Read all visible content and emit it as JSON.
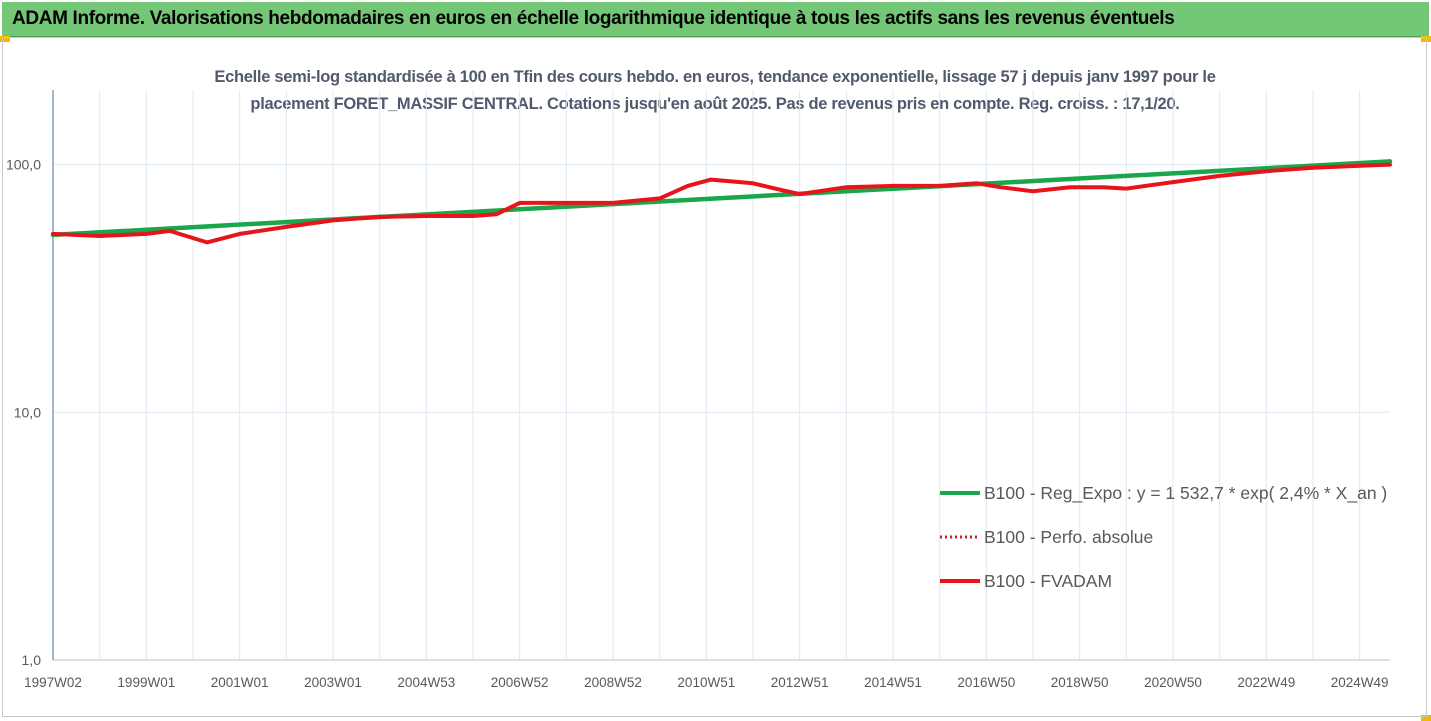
{
  "header": {
    "title": "ADAM Informe. Valorisations hebdomadaires en euros en échelle logarithmique identique à tous les actifs sans les revenus éventuels"
  },
  "colors": {
    "header_bg": "#74c776",
    "corner_accent": "#f3b800",
    "trend_line": "#1aa64a",
    "fvadam_line": "#e8141c",
    "perf_line": "#e8141c",
    "grid": "#dfe8f2",
    "axis_text": "#595959"
  },
  "chart_data": {
    "type": "line",
    "title_line1": "Echelle semi-log standardisée à 100 en Tfin des cours hebdo. en euros, tendance exponentielle, lissage 57 j depuis janv 1997 pour le",
    "title_line2": "placement FORET_MASSIF CENTRAL. Cotations jusqu'en août 2025. Pas de revenus pris en compte. Reg. croiss. : 17,1/20.",
    "y_scale": "log",
    "ylim": [
      1,
      200
    ],
    "y_ticks": [
      {
        "value": 1,
        "label": "1,0"
      },
      {
        "value": 10,
        "label": "10,0"
      },
      {
        "value": 100,
        "label": "100,0"
      }
    ],
    "xlim": [
      1997.0,
      2025.65
    ],
    "x_ticks": [
      {
        "value": 1997.0,
        "label": "1997W02"
      },
      {
        "value": 1999.0,
        "label": "1999W01"
      },
      {
        "value": 2001.0,
        "label": "2001W01"
      },
      {
        "value": 2003.0,
        "label": "2003W01"
      },
      {
        "value": 2005.0,
        "label": "2004W53"
      },
      {
        "value": 2007.0,
        "label": "2006W52"
      },
      {
        "value": 2009.0,
        "label": "2008W52"
      },
      {
        "value": 2011.0,
        "label": "2010W51"
      },
      {
        "value": 2013.0,
        "label": "2012W51"
      },
      {
        "value": 2015.0,
        "label": "2014W51"
      },
      {
        "value": 2017.0,
        "label": "2016W50"
      },
      {
        "value": 2019.0,
        "label": "2018W50"
      },
      {
        "value": 2021.0,
        "label": "2020W50"
      },
      {
        "value": 2023.0,
        "label": "2022W49"
      },
      {
        "value": 2025.0,
        "label": "2024W49"
      }
    ],
    "grid": true,
    "legend_position": "bottom-right",
    "series": [
      {
        "name": "B100 - Reg_Expo : y = 1 532,7 * exp( 2,4% *  X_an )",
        "color": "#1aa64a",
        "style": "solid",
        "x": [
          1997.0,
          2025.65
        ],
        "y": [
          52.0,
          103.0
        ]
      },
      {
        "name": "B100 - Perfo. absolue",
        "color": "#e8141c",
        "style": "dotted",
        "x": [],
        "y": []
      },
      {
        "name": "B100 - FVADAM",
        "color": "#e8141c",
        "style": "solid",
        "x": [
          1997.0,
          1998.0,
          1999.0,
          1999.5,
          2000.3,
          2001.0,
          2002.0,
          2003.0,
          2004.0,
          2005.0,
          2006.0,
          2006.5,
          2007.0,
          2008.0,
          2009.0,
          2010.0,
          2010.6,
          2011.1,
          2012.0,
          2012.6,
          2013.0,
          2014.0,
          2015.0,
          2016.0,
          2016.8,
          2017.3,
          2018.0,
          2018.8,
          2019.5,
          2020.0,
          2021.0,
          2022.0,
          2023.0,
          2024.0,
          2025.0,
          2025.65
        ],
        "y": [
          52.5,
          51.5,
          52.5,
          54.0,
          48.5,
          52.5,
          56.0,
          59.5,
          61.5,
          62.0,
          62.0,
          63.0,
          70.0,
          70.0,
          70.0,
          73.0,
          82.0,
          87.0,
          84.0,
          79.0,
          76.0,
          81.0,
          82.0,
          82.0,
          84.0,
          81.0,
          78.0,
          81.0,
          81.0,
          80.0,
          85.0,
          90.0,
          94.0,
          97.0,
          99.0,
          100.0
        ]
      }
    ]
  }
}
